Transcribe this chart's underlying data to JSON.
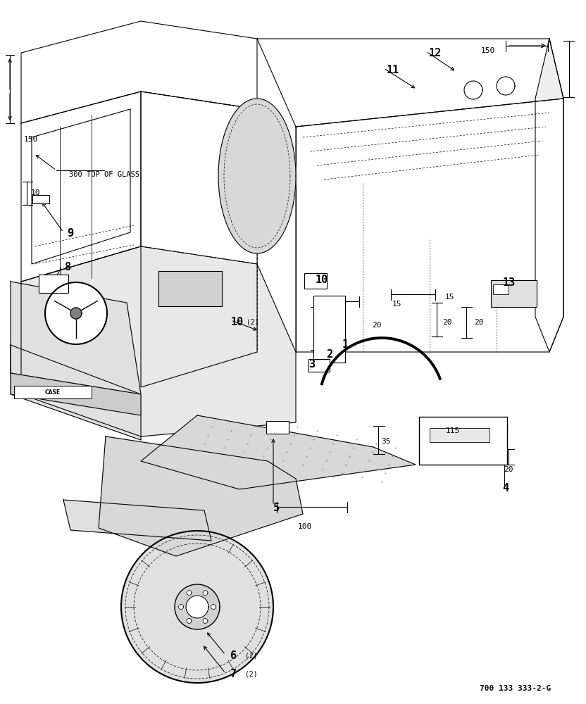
{
  "bg_color": "#ffffff",
  "line_color": "#000000",
  "text_color": "#000000",
  "ref_text": "700 133 333-2-G",
  "part_labels": [
    [
      490,
      490,
      "1"
    ],
    [
      468,
      503,
      "2"
    ],
    [
      443,
      518,
      "3"
    ],
    [
      718,
      693,
      "4"
    ],
    [
      392,
      722,
      "5"
    ],
    [
      332,
      932,
      "6"
    ],
    [
      332,
      958,
      "7"
    ],
    [
      97,
      380,
      "8"
    ],
    [
      100,
      332,
      "9"
    ],
    [
      457,
      397,
      "10"
    ],
    [
      337,
      458,
      "10"
    ],
    [
      558,
      100,
      "11"
    ],
    [
      618,
      76,
      "12"
    ],
    [
      723,
      402,
      "13"
    ]
  ],
  "subscript_labels": [
    [
      348,
      932,
      "(2)"
    ],
    [
      348,
      958,
      "(2)"
    ],
    [
      350,
      458,
      "(2)"
    ]
  ],
  "dim_labels": [
    [
      693,
      72,
      "150"
    ],
    [
      44,
      198,
      "150"
    ],
    [
      148,
      248,
      "300 TOP OF GLASS"
    ],
    [
      50,
      274,
      "10"
    ],
    [
      563,
      432,
      "15"
    ],
    [
      638,
      422,
      "15"
    ],
    [
      535,
      462,
      "20"
    ],
    [
      635,
      458,
      "20"
    ],
    [
      680,
      458,
      "20"
    ],
    [
      548,
      627,
      "35"
    ],
    [
      433,
      748,
      "100"
    ],
    [
      643,
      612,
      "115"
    ],
    [
      722,
      667,
      "20"
    ]
  ]
}
